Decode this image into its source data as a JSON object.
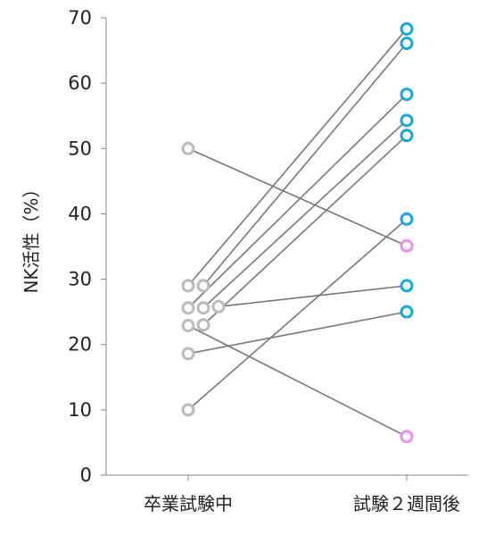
{
  "chart_data": {
    "type": "scatter",
    "title": "",
    "xlabel": "",
    "ylabel": "NK活性（%）",
    "ylim": [
      0,
      70
    ],
    "yticks": [
      0,
      10,
      20,
      30,
      40,
      50,
      60,
      70
    ],
    "categories": [
      "卒業試験中",
      "試験２週間後"
    ],
    "grid": false,
    "legend": "none",
    "colors": {
      "before_marker": "#bbbbbb",
      "after_increase_marker": "#1aa7e0",
      "after_decrease_marker": "#f08cf0",
      "line": "#777777",
      "axis": "#888888"
    },
    "pairs": [
      {
        "before": 29,
        "after": 68.3,
        "offset": 0,
        "direction": "increase"
      },
      {
        "before": 29,
        "after": 66.1,
        "offset": 1,
        "direction": "increase"
      },
      {
        "before": 25.6,
        "after": 58.3,
        "offset": 0,
        "direction": "increase"
      },
      {
        "before": 25.6,
        "after": 54.3,
        "offset": 1,
        "direction": "increase"
      },
      {
        "before": 23,
        "after": 52,
        "offset": 1,
        "direction": "increase"
      },
      {
        "before": 50,
        "after": 35.1,
        "offset": 0,
        "direction": "decrease"
      },
      {
        "before": 25.8,
        "after": 29,
        "offset": 2,
        "direction": "increase"
      },
      {
        "before": 18.6,
        "after": 25,
        "offset": 0,
        "direction": "increase"
      },
      {
        "before": 22.9,
        "after": 5.9,
        "offset": 0,
        "direction": "decrease"
      },
      {
        "before": 10,
        "after": 39.2,
        "offset": 0,
        "direction": "increase"
      }
    ]
  }
}
